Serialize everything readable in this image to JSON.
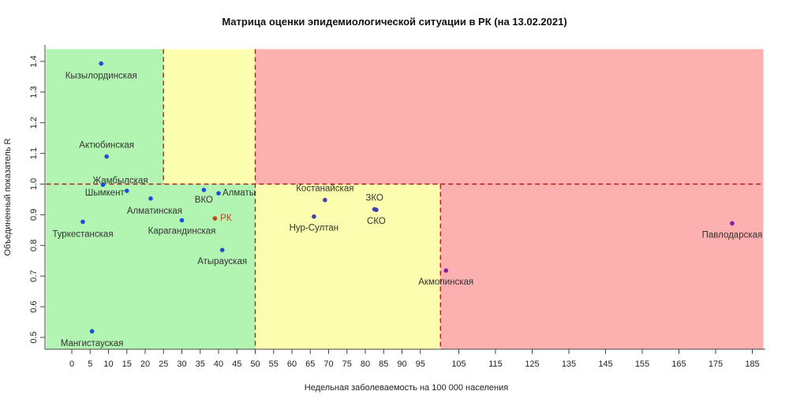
{
  "chart_data": {
    "type": "scatter",
    "title": "Матрица оценки эпидемиологической ситуации в РК (на 13.02.2021)",
    "xlabel": "Недельная заболеваемость на 100 000 населения",
    "ylabel": "Объединенный показатель R",
    "x_ticks": [
      0,
      5,
      10,
      15,
      20,
      25,
      30,
      35,
      40,
      45,
      50,
      55,
      60,
      65,
      70,
      75,
      80,
      85,
      90,
      95,
      105,
      115,
      125,
      135,
      145,
      155,
      165,
      175,
      185
    ],
    "y_ticks": [
      0.5,
      0.6,
      0.7,
      0.8,
      0.9,
      1.0,
      1.1,
      1.2,
      1.3,
      1.4
    ],
    "y_tick_labels": [
      "0.5",
      "0.6",
      "0.7",
      "0.8",
      "0.9",
      "1.0",
      "1.1",
      "1.2",
      "1.3",
      "1.4"
    ],
    "xlim": [
      -7,
      188
    ],
    "ylim": [
      0.46,
      1.44
    ],
    "grid": false,
    "legend": "none",
    "zones": [
      {
        "x_from": -7,
        "x_to": 50,
        "y_from": 0.46,
        "y_to": 1.0,
        "color": "#b2f5b2"
      },
      {
        "x_from": -7,
        "x_to": 25,
        "y_from": 1.0,
        "y_to": 1.44,
        "color": "#b2f5b2"
      },
      {
        "x_from": 25,
        "x_to": 50,
        "y_from": 1.0,
        "y_to": 1.44,
        "color": "#fdfdb0"
      },
      {
        "x_from": 50,
        "x_to": 100,
        "y_from": 0.46,
        "y_to": 1.0,
        "color": "#fdfdb0"
      },
      {
        "x_from": 50,
        "x_to": 188,
        "y_from": 1.0,
        "y_to": 1.44,
        "color": "#fdb0b0"
      },
      {
        "x_from": 100,
        "x_to": 188,
        "y_from": 0.46,
        "y_to": 1.0,
        "color": "#fdb0b0"
      }
    ],
    "thresholds": {
      "x_lines": [
        {
          "x": 25,
          "y_from": 1.0,
          "y_to": 1.44
        },
        {
          "x": 50,
          "y_from": 0.46,
          "y_to": 1.44
        },
        {
          "x": 100,
          "y_from": 0.46,
          "y_to": 1.0
        }
      ],
      "y_lines": [
        {
          "y": 1.0,
          "x_from": -7,
          "x_to": 100
        },
        {
          "y": 1.0,
          "x_from": 100,
          "x_to": 188
        }
      ],
      "color": "#b02020"
    },
    "points": [
      {
        "label": "Кызылординская",
        "x": 8.0,
        "y": 1.393,
        "color": "#1a4fd6",
        "label_color": "#333333",
        "label_dx": 0,
        "label_dy": 16
      },
      {
        "label": "Актюбинская",
        "x": 9.5,
        "y": 1.09,
        "color": "#1a4fd6",
        "label_color": "#333333",
        "label_dx": 0,
        "label_dy": -14
      },
      {
        "label": "Жамбылская",
        "x": 8.5,
        "y": 0.998,
        "color": "#1a4fd6",
        "label_color": "#333333",
        "label_dx": 22,
        "label_dy": -5
      },
      {
        "label": "Шымкент",
        "x": 15.0,
        "y": 0.978,
        "color": "#1a4fd6",
        "label_color": "#333333",
        "label_dx": -28,
        "label_dy": 3
      },
      {
        "label": "Алматинская",
        "x": 21.5,
        "y": 0.953,
        "color": "#1a4fd6",
        "label_color": "#333333",
        "label_dx": 5,
        "label_dy": 16
      },
      {
        "label": "ВКО",
        "x": 36.0,
        "y": 0.981,
        "color": "#1a4fd6",
        "label_color": "#333333",
        "label_dx": 0,
        "label_dy": 13
      },
      {
        "label": "Алматы",
        "x": 40.0,
        "y": 0.97,
        "color": "#1a4fd6",
        "label_color": "#333333",
        "label_dx": 26,
        "label_dy": 0
      },
      {
        "label": "Туркестанская",
        "x": 3.0,
        "y": 0.877,
        "color": "#1a4fd6",
        "label_color": "#333333",
        "label_dx": 0,
        "label_dy": 16
      },
      {
        "label": "Карагандинская",
        "x": 30.0,
        "y": 0.882,
        "color": "#1a4fd6",
        "label_color": "#333333",
        "label_dx": 0,
        "label_dy": 14
      },
      {
        "label": "РК",
        "x": 39.0,
        "y": 0.888,
        "color": "#b5451b",
        "label_color": "#b5451b",
        "label_dx": 14,
        "label_dy": 0
      },
      {
        "label": "Атырауская",
        "x": 41.0,
        "y": 0.785,
        "color": "#1a4fd6",
        "label_color": "#333333",
        "label_dx": 0,
        "label_dy": 15
      },
      {
        "label": "Мангистауская",
        "x": 5.5,
        "y": 0.52,
        "color": "#1a4fd6",
        "label_color": "#333333",
        "label_dx": 0,
        "label_dy": 16
      },
      {
        "label": "Костанайская",
        "x": 69.0,
        "y": 0.948,
        "color": "#4040b0",
        "label_color": "#333333",
        "label_dx": 0,
        "label_dy": -14
      },
      {
        "label": "Нур-Султан",
        "x": 66.0,
        "y": 0.894,
        "color": "#4040b0",
        "label_color": "#333333",
        "label_dx": 0,
        "label_dy": 15
      },
      {
        "label": "ЗКО",
        "x": 82.5,
        "y": 0.918,
        "color": "#4040b0",
        "label_color": "#333333",
        "label_dx": 0,
        "label_dy": -14
      },
      {
        "label": "СКО",
        "x": 83.0,
        "y": 0.916,
        "color": "#4040b0",
        "label_color": "#333333",
        "label_dx": 0,
        "label_dy": 15
      },
      {
        "label": "Акмолинская",
        "x": 101.5,
        "y": 0.718,
        "color": "#8a1aa8",
        "label_color": "#333333",
        "label_dx": 0,
        "label_dy": 15
      },
      {
        "label": "Павлодарская",
        "x": 179.5,
        "y": 0.872,
        "color": "#8a1aa8",
        "label_color": "#333333",
        "label_dx": 0,
        "label_dy": 15
      }
    ]
  }
}
